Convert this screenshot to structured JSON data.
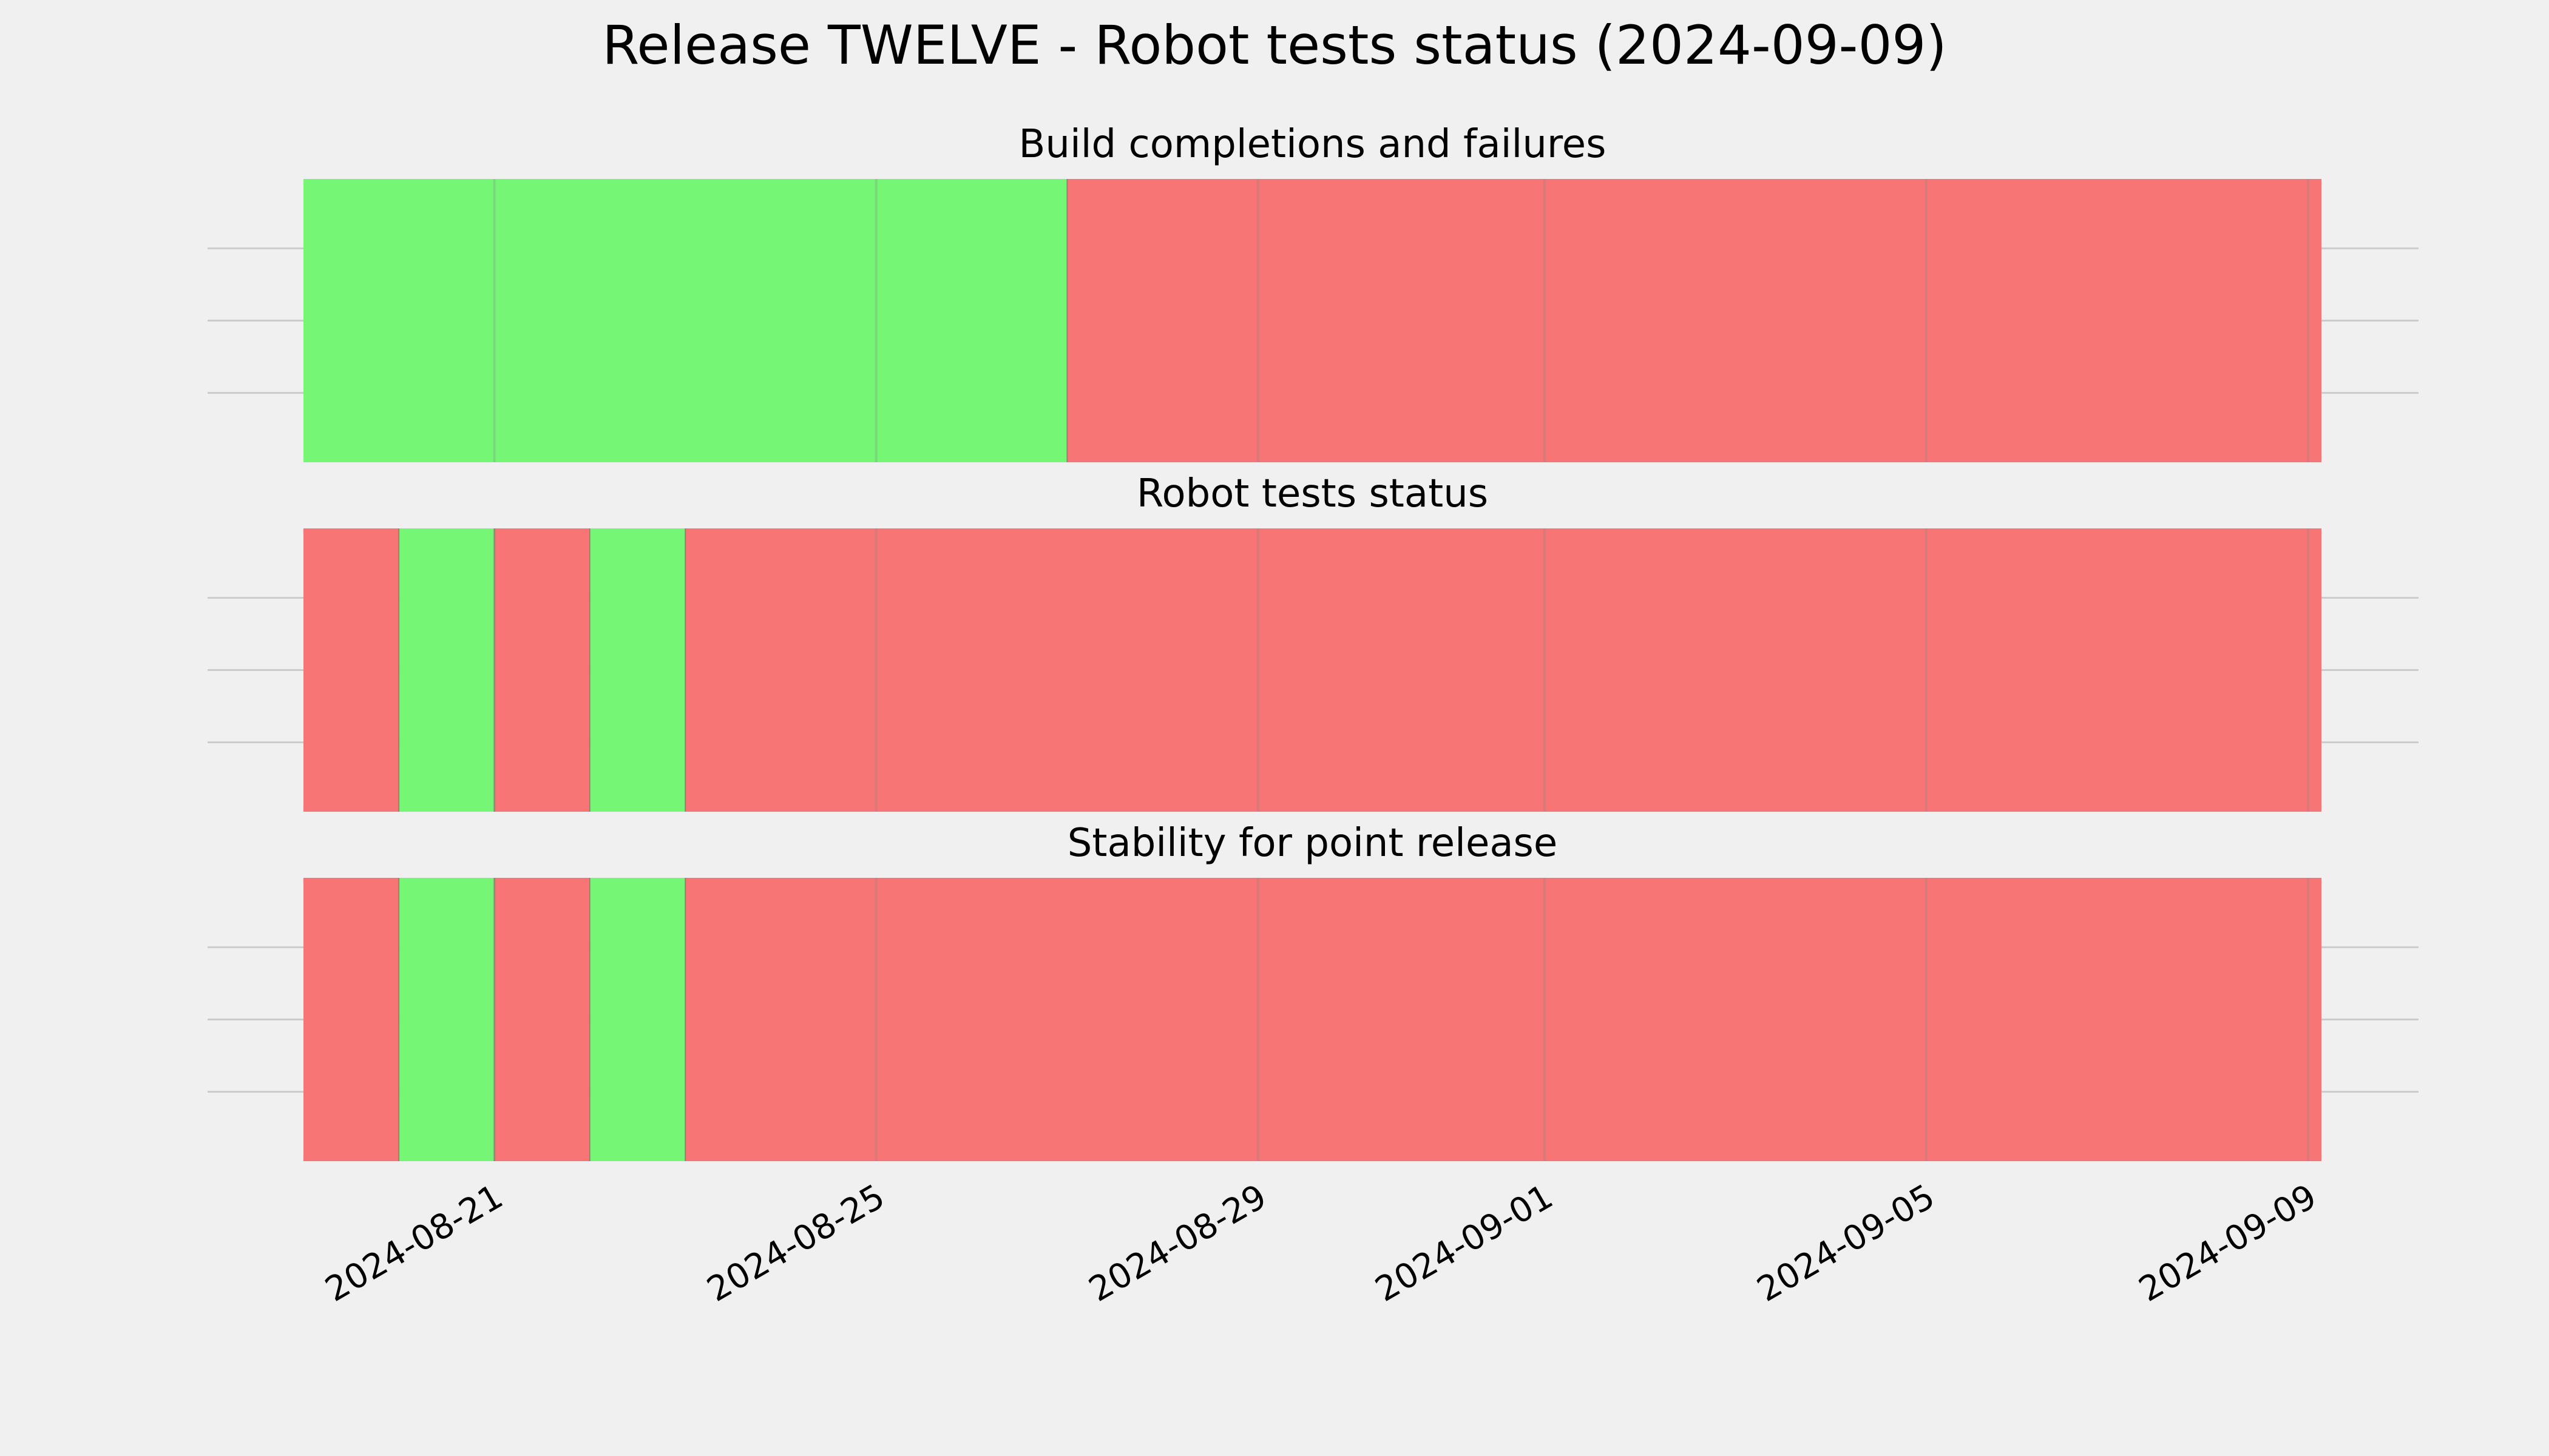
{
  "colors": {
    "background": "#f0f0f0",
    "pass": "#75f775",
    "fail": "#f77575",
    "grid": "#cbcbcb",
    "text": "#000000"
  },
  "chart_data": {
    "type": "timeline",
    "title": "Release TWELVE - Robot tests status (2024-09-09)",
    "x_type": "date",
    "xlim": [
      "2024-08-19",
      "2024-09-09"
    ],
    "xticks": [
      "2024-08-21",
      "2024-08-25",
      "2024-08-29",
      "2024-09-01",
      "2024-09-05",
      "2024-09-09"
    ],
    "grid": true,
    "panels": [
      {
        "title": "Build completions and failures",
        "segments": [
          {
            "start": "2024-08-19",
            "end": "2024-08-27",
            "status": "pass"
          },
          {
            "start": "2024-08-27",
            "end": "2024-09-09",
            "status": "fail"
          }
        ]
      },
      {
        "title": "Robot tests status",
        "segments": [
          {
            "start": "2024-08-19",
            "end": "2024-08-20",
            "status": "fail"
          },
          {
            "start": "2024-08-20",
            "end": "2024-08-21",
            "status": "pass"
          },
          {
            "start": "2024-08-21",
            "end": "2024-08-22",
            "status": "fail"
          },
          {
            "start": "2024-08-22",
            "end": "2024-08-23",
            "status": "pass"
          },
          {
            "start": "2024-08-23",
            "end": "2024-09-09",
            "status": "fail"
          }
        ]
      },
      {
        "title": "Stability for point release",
        "segments": [
          {
            "start": "2024-08-19",
            "end": "2024-08-20",
            "status": "fail"
          },
          {
            "start": "2024-08-20",
            "end": "2024-08-21",
            "status": "pass"
          },
          {
            "start": "2024-08-21",
            "end": "2024-08-22",
            "status": "fail"
          },
          {
            "start": "2024-08-22",
            "end": "2024-08-23",
            "status": "pass"
          },
          {
            "start": "2024-08-23",
            "end": "2024-09-09",
            "status": "fail"
          }
        ]
      }
    ]
  }
}
